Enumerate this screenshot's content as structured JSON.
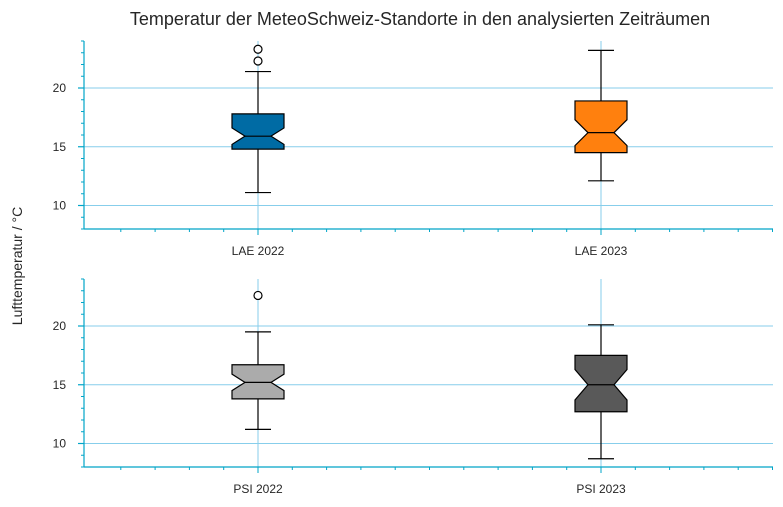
{
  "chart_data": {
    "type": "boxplot",
    "title": "Temperatur der MeteoSchweiz-Standorte in den analysierten Zeiträumen",
    "ylabel": "Lufttemperatur / °C",
    "colors": {
      "grid": "#87ceeb",
      "axis": "#00a5c8",
      "LAE 2022": "#006ba4",
      "LAE 2023": "#ff800e",
      "PSI 2022": "#ababab",
      "PSI 2023": "#595959"
    },
    "panels": [
      {
        "ylim": [
          8,
          24
        ],
        "yticks": [
          10,
          15,
          20
        ],
        "grid": true,
        "categories": [
          "LAE 2022",
          "LAE 2023"
        ],
        "boxes": [
          {
            "label": "LAE 2022",
            "whisker_low": 11.1,
            "q1": 14.8,
            "median": 15.9,
            "q3": 17.8,
            "whisker_high": 21.4,
            "notch_low": 15.2,
            "notch_high": 16.6,
            "fliers": [
              22.3,
              23.3
            ]
          },
          {
            "label": "LAE 2023",
            "whisker_low": 12.1,
            "q1": 14.5,
            "median": 16.2,
            "q3": 18.9,
            "whisker_high": 23.2,
            "notch_low": 15.1,
            "notch_high": 17.3,
            "fliers": []
          }
        ]
      },
      {
        "ylim": [
          8,
          24
        ],
        "yticks": [
          10,
          15,
          20
        ],
        "grid": true,
        "categories": [
          "PSI 2022",
          "PSI 2023"
        ],
        "boxes": [
          {
            "label": "PSI 2022",
            "whisker_low": 11.2,
            "q1": 13.8,
            "median": 15.2,
            "q3": 16.7,
            "whisker_high": 19.5,
            "notch_low": 14.5,
            "notch_high": 15.9,
            "fliers": [
              22.6
            ]
          },
          {
            "label": "PSI 2023",
            "whisker_low": 8.7,
            "q1": 12.7,
            "median": 15.0,
            "q3": 17.5,
            "whisker_high": 20.1,
            "notch_low": 13.7,
            "notch_high": 16.3,
            "fliers": []
          }
        ]
      }
    ]
  }
}
